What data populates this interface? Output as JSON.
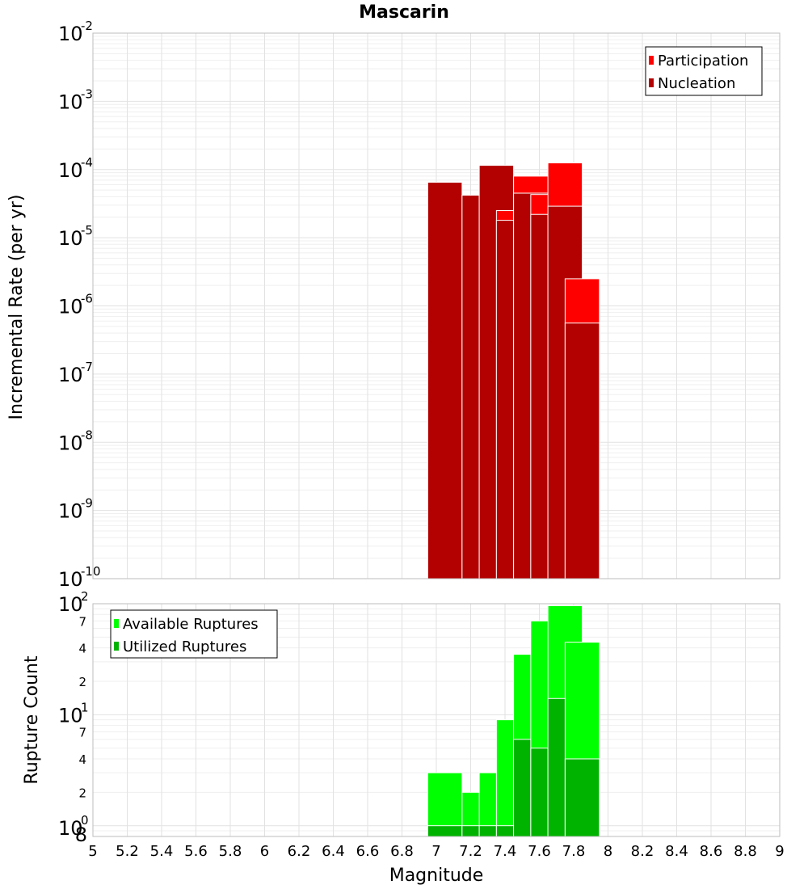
{
  "title": "Mascarin",
  "colors": {
    "participation": "#ff0000",
    "nucleation": "#b30000",
    "available": "#00ff00",
    "utilized": "#00b300"
  },
  "chart_data": [
    {
      "type": "bar",
      "title": "Mascarin",
      "xlabel": "Magnitude",
      "ylabel": "Incremental Rate (per yr)",
      "yscale": "log",
      "ylim": [
        1e-10,
        0.01
      ],
      "xlim": [
        5,
        9
      ],
      "x_tick_labels": [
        "5",
        "5.2",
        "5.4",
        "5.6",
        "5.8",
        "6",
        "6.2",
        "6.4",
        "6.6",
        "6.8",
        "7",
        "7.2",
        "7.4",
        "7.6",
        "7.8",
        "8",
        "8.2",
        "8.4",
        "8.6",
        "8.8",
        "9"
      ],
      "y_tick_labels": [
        {
          "base": "10",
          "exp": "-2"
        },
        {
          "base": "10",
          "exp": "-3"
        },
        {
          "base": "10",
          "exp": "-4"
        },
        {
          "base": "10",
          "exp": "-5"
        },
        {
          "base": "10",
          "exp": "-6"
        },
        {
          "base": "10",
          "exp": "-7"
        },
        {
          "base": "10",
          "exp": "-8"
        },
        {
          "base": "10",
          "exp": "-9"
        },
        {
          "base": "10",
          "exp": "-10"
        }
      ],
      "grid": true,
      "legend": {
        "position": "top-right",
        "entries": [
          "Participation",
          "Nucleation"
        ]
      },
      "x": [
        7.05,
        7.25,
        7.35,
        7.45,
        7.55,
        7.65,
        7.75,
        7.85
      ],
      "series": [
        {
          "name": "Participation",
          "values": [
            6.5e-05,
            4.2e-05,
            0.000115,
            2.5e-05,
            8e-05,
            4.3e-05,
            0.000125,
            2.5e-06
          ]
        },
        {
          "name": "Nucleation",
          "values": [
            6.5e-05,
            4.2e-05,
            0.000115,
            1.8e-05,
            4.5e-05,
            2.2e-05,
            2.9e-05,
            5.6e-07
          ]
        }
      ]
    },
    {
      "type": "bar",
      "xlabel": "Magnitude",
      "ylabel": "Rupture Count",
      "yscale": "log",
      "ylim": [
        0.8,
        100
      ],
      "xlim": [
        5,
        9
      ],
      "y_tick_labels": [
        {
          "base": "10",
          "exp": "2"
        },
        {
          "base": "10",
          "exp": "1"
        },
        {
          "base": "10",
          "exp": "0"
        }
      ],
      "y_minor_labels": [
        "7",
        "4",
        "2",
        "7",
        "4",
        "2",
        "8"
      ],
      "grid": true,
      "legend": {
        "position": "top-left",
        "entries": [
          "Available Ruptures",
          "Utilized Ruptures"
        ]
      },
      "x": [
        7.05,
        7.25,
        7.35,
        7.45,
        7.55,
        7.65,
        7.75,
        7.85
      ],
      "series": [
        {
          "name": "Available Ruptures",
          "values": [
            3,
            2,
            3,
            9,
            35,
            70,
            96,
            45
          ]
        },
        {
          "name": "Utilized Ruptures",
          "values": [
            1,
            1,
            1,
            1,
            6,
            5,
            14,
            4
          ]
        }
      ]
    }
  ]
}
